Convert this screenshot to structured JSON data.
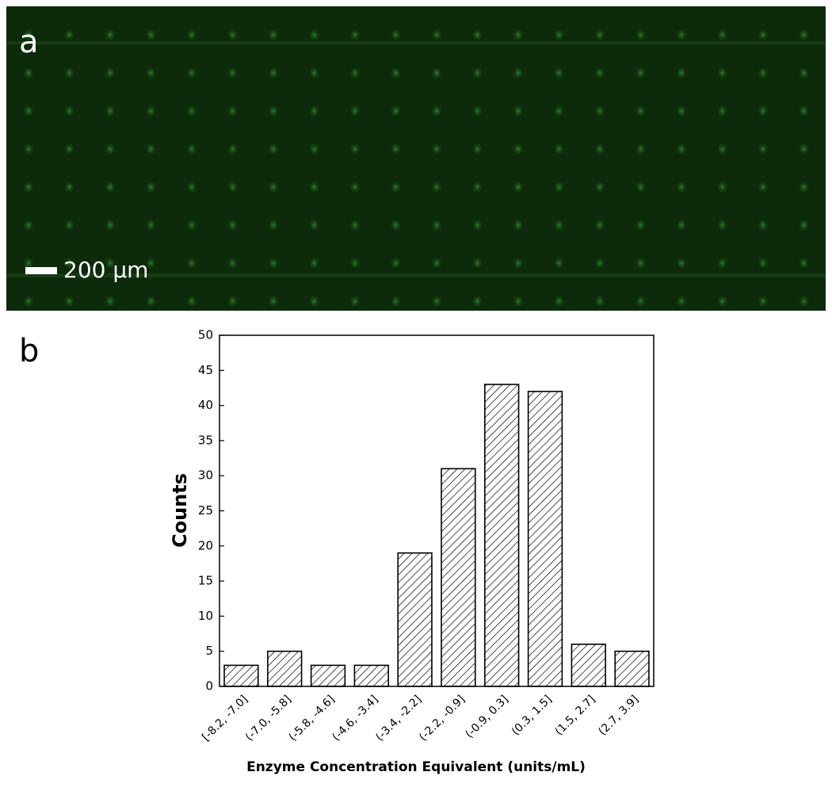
{
  "panels": {
    "a": "a",
    "b": "b"
  },
  "image": {
    "scale_bar_label": "200 μm"
  },
  "chart_data": {
    "type": "bar",
    "categories": [
      "[-8.2, -7.0]",
      "(-7.0, -5.8]",
      "(-5.8, -4.6]",
      "(-4.6, -3.4]",
      "(-3.4, -2.2]",
      "(-2.2, -0.9]",
      "(-0.9, 0.3]",
      "(0.3, 1.5]",
      "(1.5, 2.7]",
      "(2.7, 3.9]"
    ],
    "values": [
      3,
      5,
      3,
      3,
      19,
      31,
      43,
      42,
      6,
      5
    ],
    "ylim": [
      0,
      50
    ],
    "yticks": [
      0,
      5,
      10,
      15,
      20,
      25,
      30,
      35,
      40,
      45,
      50
    ],
    "xlabel": "Enzyme Concentration Equivalent (units/mL)",
    "ylabel": "Counts",
    "color": "#000000"
  }
}
